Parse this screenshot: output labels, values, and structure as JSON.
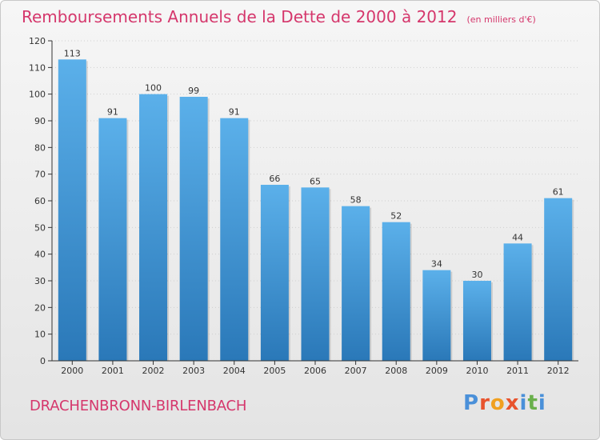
{
  "header": {
    "title": "Remboursements Annuels de la Dette de 2000 à 2012",
    "unit": "(en milliers d'€)"
  },
  "footer": {
    "commune": "DRACHENBRONN-BIRLENBACH",
    "logo": "Proxiti"
  },
  "colors": {
    "title": "#d5376c",
    "bar_top": "#5bb0ea",
    "bar_bottom": "#2a78b8",
    "axis": "#333333",
    "grid": "#cfcfcf"
  },
  "chart_data": {
    "type": "bar",
    "title": "Remboursements Annuels de la Dette de 2000 à 2012",
    "xlabel": "",
    "ylabel": "",
    "categories": [
      "2000",
      "2001",
      "2002",
      "2003",
      "2004",
      "2005",
      "2006",
      "2007",
      "2008",
      "2009",
      "2010",
      "2011",
      "2012"
    ],
    "values": [
      113,
      91,
      100,
      99,
      91,
      66,
      65,
      58,
      52,
      34,
      30,
      44,
      61
    ],
    "ylim": [
      0,
      120
    ],
    "yticks": [
      0,
      10,
      20,
      30,
      40,
      50,
      60,
      70,
      80,
      90,
      100,
      110,
      120
    ],
    "data_labels": true
  }
}
